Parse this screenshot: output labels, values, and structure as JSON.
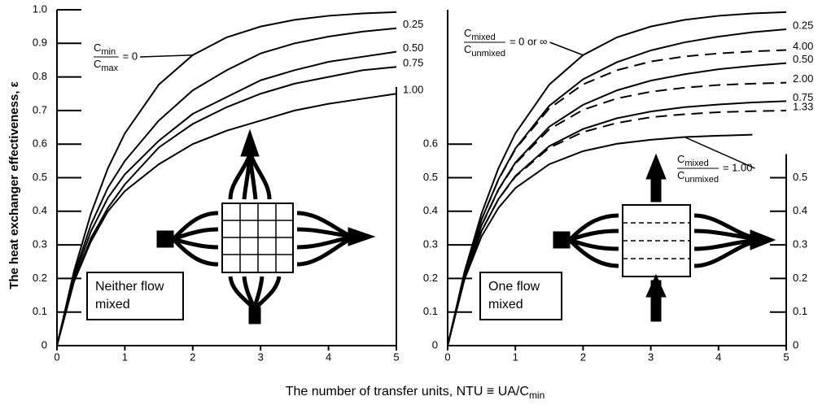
{
  "x_label": {
    "text": "The number of transfer units, NTU ≡ UA/C",
    "sub": "min"
  },
  "chart_data": [
    {
      "type": "line",
      "ylabel": "The heat exchanger effectiveness, ε",
      "box": [
        "Neither flow",
        "mixed"
      ],
      "ratio": {
        "num": {
          "text": "C",
          "sub": "min"
        },
        "den": {
          "text": "C",
          "sub": "max"
        }
      },
      "x": [
        0,
        0.25,
        0.5,
        0.75,
        1,
        1.5,
        2,
        2.5,
        3,
        3.5,
        4,
        4.5,
        5
      ],
      "xlim": [
        0,
        5
      ],
      "xticks": [
        0,
        1,
        2,
        3,
        4,
        5
      ],
      "ylim": [
        0,
        1
      ],
      "yticks": [
        0,
        0.1,
        0.2,
        0.3,
        0.4,
        0.5,
        0.6,
        0.7,
        0.8,
        0.9,
        {
          "value": 1,
          "label": "1.0"
        }
      ],
      "series": [
        {
          "name": "= 0",
          "color": "#000000",
          "dashed": false,
          "label_style": "fraction",
          "values": [
            0,
            0.221,
            0.393,
            0.528,
            0.632,
            0.777,
            0.865,
            0.918,
            0.95,
            0.97,
            0.982,
            0.989,
            0.993
          ]
        },
        {
          "name": "0.25",
          "color": "#000000",
          "dashed": false,
          "label_style": "end",
          "values": [
            0,
            0.21,
            0.36,
            0.47,
            0.55,
            0.67,
            0.76,
            0.82,
            0.87,
            0.9,
            0.92,
            0.935,
            0.945
          ]
        },
        {
          "name": "0.50",
          "color": "#000000",
          "dashed": false,
          "label_style": "end",
          "values": [
            0,
            0.2,
            0.34,
            0.44,
            0.51,
            0.61,
            0.69,
            0.74,
            0.79,
            0.82,
            0.845,
            0.86,
            0.875
          ]
        },
        {
          "name": "0.75",
          "color": "#000000",
          "dashed": false,
          "label_style": "end",
          "values": [
            0,
            0.19,
            0.32,
            0.41,
            0.48,
            0.59,
            0.66,
            0.71,
            0.75,
            0.78,
            0.8,
            0.82,
            0.83
          ]
        },
        {
          "name": "1.00",
          "color": "#000000",
          "dashed": false,
          "label_style": "end",
          "values": [
            0,
            0.19,
            0.31,
            0.4,
            0.46,
            0.54,
            0.6,
            0.64,
            0.67,
            0.7,
            0.72,
            0.735,
            0.75
          ]
        }
      ]
    },
    {
      "type": "line",
      "box": [
        "One flow",
        "mixed"
      ],
      "ratio": {
        "num": {
          "text": "C",
          "sub": "mixed"
        },
        "den": {
          "text": "C",
          "sub": "unmixed"
        }
      },
      "x": [
        0,
        0.25,
        0.5,
        0.75,
        1,
        1.5,
        2,
        2.5,
        3,
        3.5,
        4,
        4.5,
        5
      ],
      "xlim": [
        0,
        5
      ],
      "xticks": [
        0,
        1,
        2,
        3,
        4,
        5
      ],
      "ylim": [
        0,
        1
      ],
      "yticks": [
        0,
        0.1,
        0.2,
        0.3,
        0.4,
        0.5,
        0.6
      ],
      "y2lim": [
        0,
        1
      ],
      "y2ticks": [
        0,
        0.1,
        0.2,
        0.3,
        0.4,
        0.5
      ],
      "series": [
        {
          "name": "= 0 or ∞",
          "color": "#000000",
          "dashed": false,
          "label_style": "fraction",
          "values": [
            0,
            0.221,
            0.393,
            0.528,
            0.632,
            0.777,
            0.865,
            0.918,
            0.95,
            0.97,
            0.982,
            0.989,
            0.993
          ]
        },
        {
          "name": "0.25",
          "color": "#000000",
          "dashed": false,
          "label_style": "end",
          "values": [
            0,
            0.215,
            0.375,
            0.495,
            0.587,
            0.714,
            0.793,
            0.844,
            0.879,
            0.903,
            0.92,
            0.933,
            0.942
          ]
        },
        {
          "name": "4.00",
          "color": "#000000",
          "dashed": true,
          "label_style": "end",
          "values": [
            0,
            0.215,
            0.375,
            0.494,
            0.585,
            0.706,
            0.778,
            0.82,
            0.846,
            0.861,
            0.87,
            0.876,
            0.88
          ]
        },
        {
          "name": "0.50",
          "color": "#000000",
          "dashed": false,
          "label_style": "end",
          "values": [
            0,
            0.209,
            0.358,
            0.465,
            0.545,
            0.652,
            0.717,
            0.76,
            0.789,
            0.808,
            0.823,
            0.833,
            0.841
          ]
        },
        {
          "name": "2.00",
          "color": "#000000",
          "dashed": true,
          "label_style": "end",
          "values": [
            0,
            0.209,
            0.357,
            0.464,
            0.542,
            0.644,
            0.702,
            0.736,
            0.756,
            0.768,
            0.776,
            0.78,
            0.783
          ]
        },
        {
          "name": "0.75",
          "color": "#000000",
          "dashed": false,
          "label_style": "end",
          "values": [
            0,
            0.204,
            0.341,
            0.436,
            0.505,
            0.594,
            0.645,
            0.677,
            0.697,
            0.71,
            0.718,
            0.724,
            0.728
          ]
        },
        {
          "name": "1.33",
          "color": "#000000",
          "dashed": true,
          "label_style": "end",
          "values": [
            0,
            0.204,
            0.341,
            0.436,
            0.503,
            0.589,
            0.636,
            0.663,
            0.68,
            0.689,
            0.695,
            0.698,
            0.7
          ]
        },
        {
          "name": "= 1.00",
          "color": "#000000",
          "dashed": false,
          "label_style": "fraction",
          "values": [
            0,
            0.198,
            0.325,
            0.41,
            0.469,
            0.54,
            0.579,
            0.601,
            0.613,
            0.621,
            0.625,
            0.628,
            null
          ]
        }
      ]
    }
  ]
}
